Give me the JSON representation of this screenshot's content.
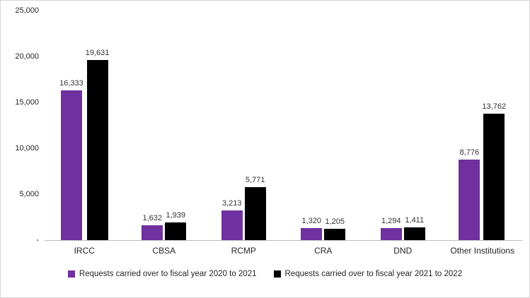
{
  "chart_data": {
    "type": "bar",
    "title": "",
    "xlabel": "",
    "ylabel": "",
    "categories": [
      "IRCC",
      "CBSA",
      "RCMP",
      "CRA",
      "DND",
      "Other Institutions"
    ],
    "series": [
      {
        "name": "Requests carried over to fiscal year 2020 to 2021",
        "color": "#7030A0",
        "values": [
          16333,
          1632,
          3213,
          1320,
          1294,
          8776
        ],
        "labels": [
          "16,333",
          "1,632",
          "3,213",
          "1,320",
          "1,294",
          "8,776"
        ]
      },
      {
        "name": "Requests carried over to fiscal year 2021 to 2022",
        "color": "#000000",
        "values": [
          19631,
          1939,
          5771,
          1205,
          1411,
          13762
        ],
        "labels": [
          "19,631",
          "1,939",
          "5,771",
          "1,205",
          "1,411",
          "13,762"
        ]
      }
    ],
    "ylim": [
      0,
      25000
    ],
    "yticks": [
      {
        "value": 0,
        "label": "-"
      },
      {
        "value": 5000,
        "label": "5,000"
      },
      {
        "value": 10000,
        "label": "10,000"
      },
      {
        "value": 15000,
        "label": "15,000"
      },
      {
        "value": 20000,
        "label": "20,000"
      },
      {
        "value": 25000,
        "label": "25,000"
      }
    ],
    "grid": false,
    "legend_position": "bottom"
  }
}
